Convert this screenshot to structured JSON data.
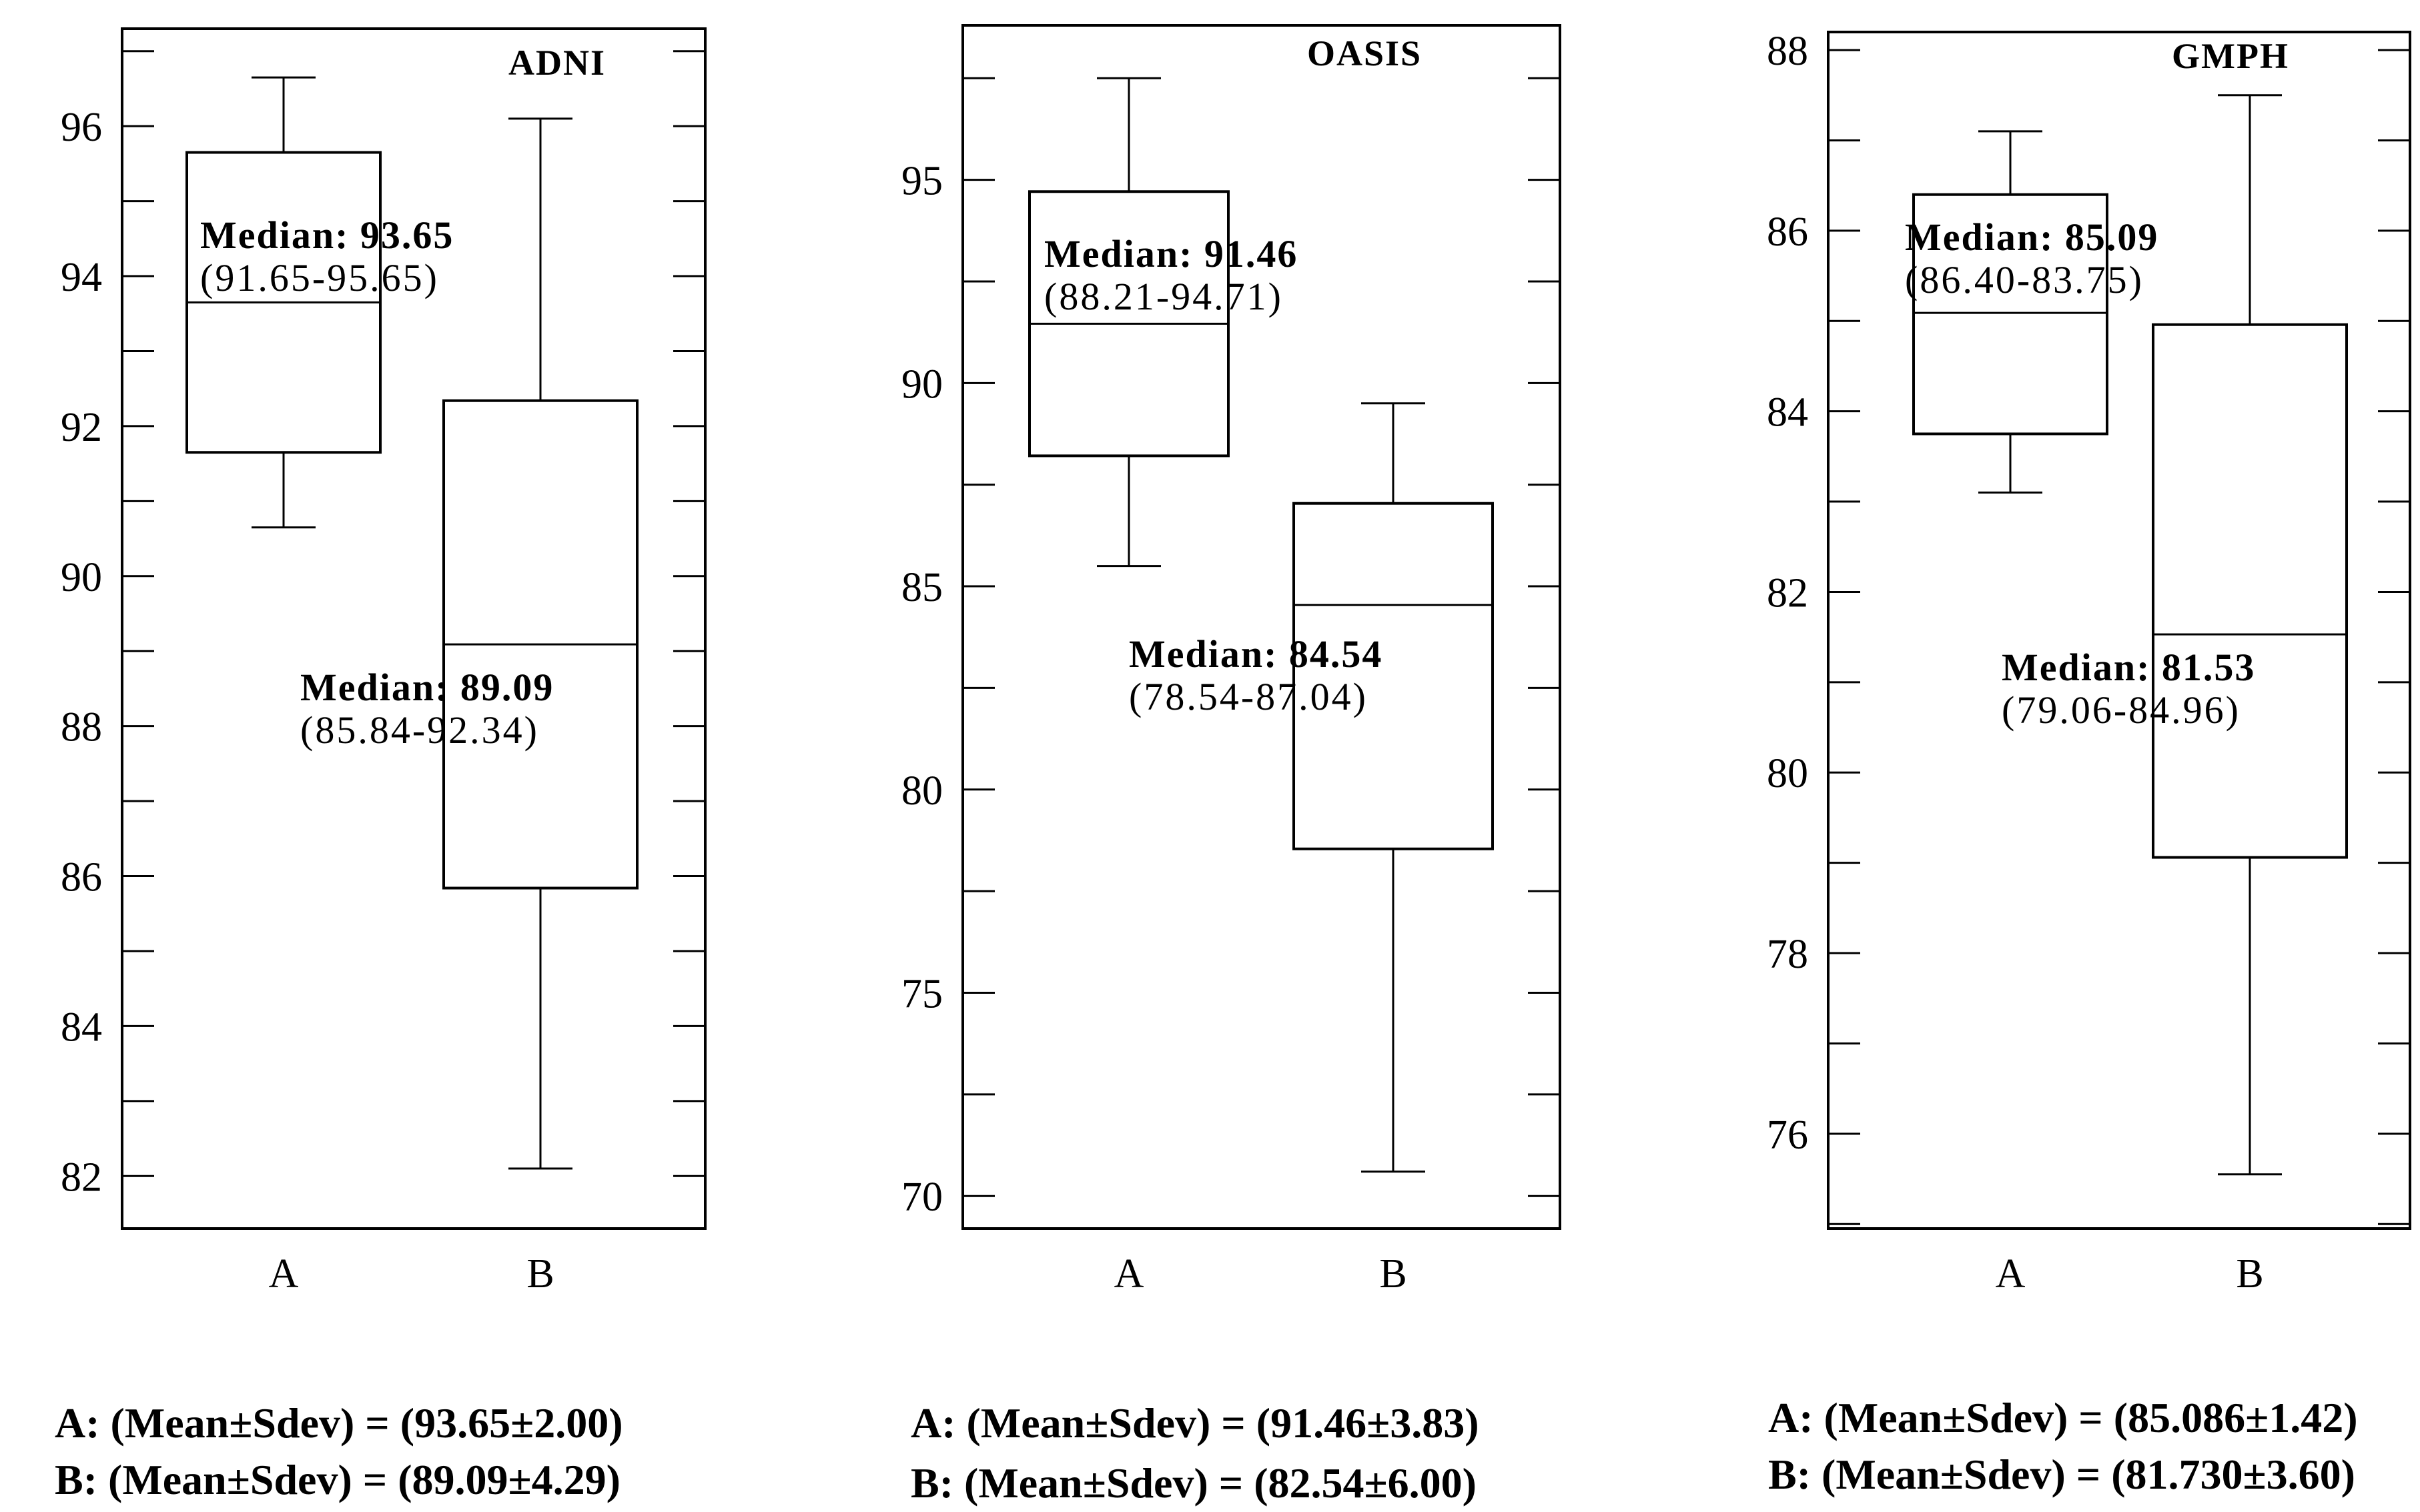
{
  "chart_data": [
    {
      "type": "box",
      "title": "ADNI",
      "categories": [
        "A",
        "B"
      ],
      "ylim": [
        81.3,
        97.3
      ],
      "yticks": [
        82,
        84,
        86,
        88,
        90,
        92,
        94,
        96
      ],
      "boxes": [
        {
          "category": "A",
          "whisker_low": 90.65,
          "q1": 91.65,
          "median": 93.65,
          "q3": 95.65,
          "whisker_high": 96.65,
          "median_label": "Median: 93.65",
          "range_label": "(91.65-95.65)"
        },
        {
          "category": "B",
          "whisker_low": 82.1,
          "q1": 85.84,
          "median": 89.09,
          "q3": 92.34,
          "whisker_high": 96.1,
          "median_label": "Median: 89.09",
          "range_label": "(85.84-92.34)"
        }
      ],
      "stats": [
        "A: (Mean±Sdev) = (93.65±2.00)",
        "B: (Mean±Sdev) = (89.09±4.29)"
      ]
    },
    {
      "type": "box",
      "title": "OASIS",
      "categories": [
        "A",
        "B"
      ],
      "ylim": [
        69.2,
        98.8
      ],
      "yticks": [
        70,
        75,
        80,
        85,
        90,
        95
      ],
      "boxes": [
        {
          "category": "A",
          "whisker_low": 85.5,
          "q1": 88.21,
          "median": 91.46,
          "q3": 94.71,
          "whisker_high": 97.5,
          "median_label": "Median: 91.46",
          "range_label": "(88.21-94.71)"
        },
        {
          "category": "B",
          "whisker_low": 70.6,
          "q1": 78.54,
          "median": 84.54,
          "q3": 87.04,
          "whisker_high": 89.5,
          "median_label": "Median: 84.54",
          "range_label": "(78.54-87.04)"
        }
      ],
      "stats": [
        "A: (Mean±Sdev) = (91.46±3.83)",
        "B: (Mean±Sdev) = (82.54±6.00)"
      ]
    },
    {
      "type": "box",
      "title": "GMPH",
      "categories": [
        "A",
        "B"
      ],
      "ylim": [
        74.95,
        88.2
      ],
      "yticks": [
        76,
        78,
        80,
        82,
        84,
        86,
        88
      ],
      "boxes": [
        {
          "category": "A",
          "whisker_low": 83.1,
          "q1": 83.75,
          "median": 85.09,
          "q3": 86.4,
          "whisker_high": 87.1,
          "median_label": "Median: 85.09",
          "range_label": "(86.40-83.75)"
        },
        {
          "category": "B",
          "whisker_low": 75.55,
          "q1": 79.06,
          "median": 81.53,
          "q3": 84.96,
          "whisker_high": 87.5,
          "median_label": "Median: 81.53",
          "range_label": "(79.06-84.96)"
        }
      ],
      "stats": [
        "A: (Mean±Sdev) = (85.086±1.42)",
        "B: (Mean±Sdev) = (81.730±3.60)"
      ]
    }
  ],
  "colors": {
    "line": "#000000",
    "box_fill": "#ffffff",
    "background": "#ffffff"
  }
}
